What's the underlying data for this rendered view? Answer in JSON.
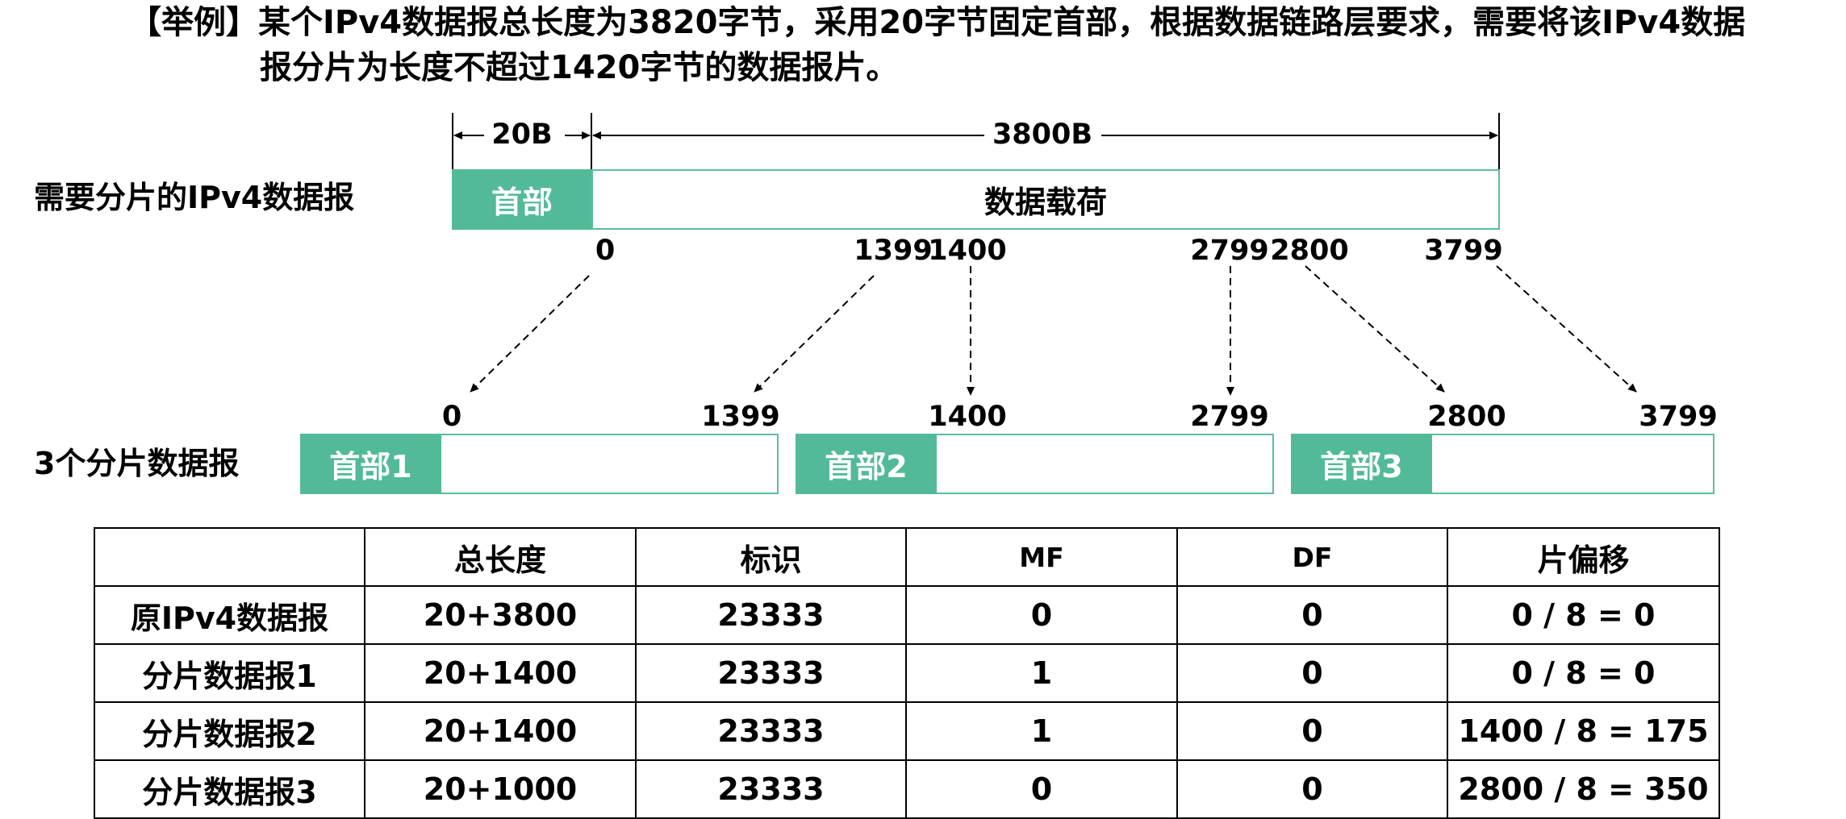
{
  "title": {
    "line1": "【举例】某个IPv4数据报总长度为3820字节，采用20字节固定首部，根据数据链路层要求，需要将该IPv4数据",
    "line2": "报分片为长度不超过1420字节的数据报片。"
  },
  "original": {
    "row_label": "需要分片的IPv4数据报",
    "header_dim": "20B",
    "payload_dim": "3800B",
    "header_label": "首部",
    "payload_label": "数据载荷",
    "offsets": [
      "0",
      "1399",
      "1400",
      "2799",
      "2800",
      "3799"
    ]
  },
  "fragments": {
    "row_label": "3个分片数据报",
    "items": [
      {
        "header": "首部1",
        "start": "0",
        "end": "1399"
      },
      {
        "header": "首部2",
        "start": "1400",
        "end": "2799"
      },
      {
        "header": "首部3",
        "start": "2800",
        "end": "3799"
      }
    ]
  },
  "table": {
    "headers": [
      "",
      "总长度",
      "标识",
      "MF",
      "DF",
      "片偏移"
    ],
    "rows": [
      [
        "原IPv4数据报",
        "20+3800",
        "23333",
        "0",
        "0",
        "0 / 8 = 0"
      ],
      [
        "分片数据报1",
        "20+1400",
        "23333",
        "1",
        "0",
        "0 / 8 = 0"
      ],
      [
        "分片数据报2",
        "20+1400",
        "23333",
        "1",
        "0",
        "1400 / 8 = 175"
      ],
      [
        "分片数据报3",
        "20+1000",
        "23333",
        "0",
        "0",
        "2800 / 8 = 350"
      ]
    ]
  },
  "colors": {
    "header_fill": "#52ba98",
    "box_border": "#5bbf9a"
  }
}
